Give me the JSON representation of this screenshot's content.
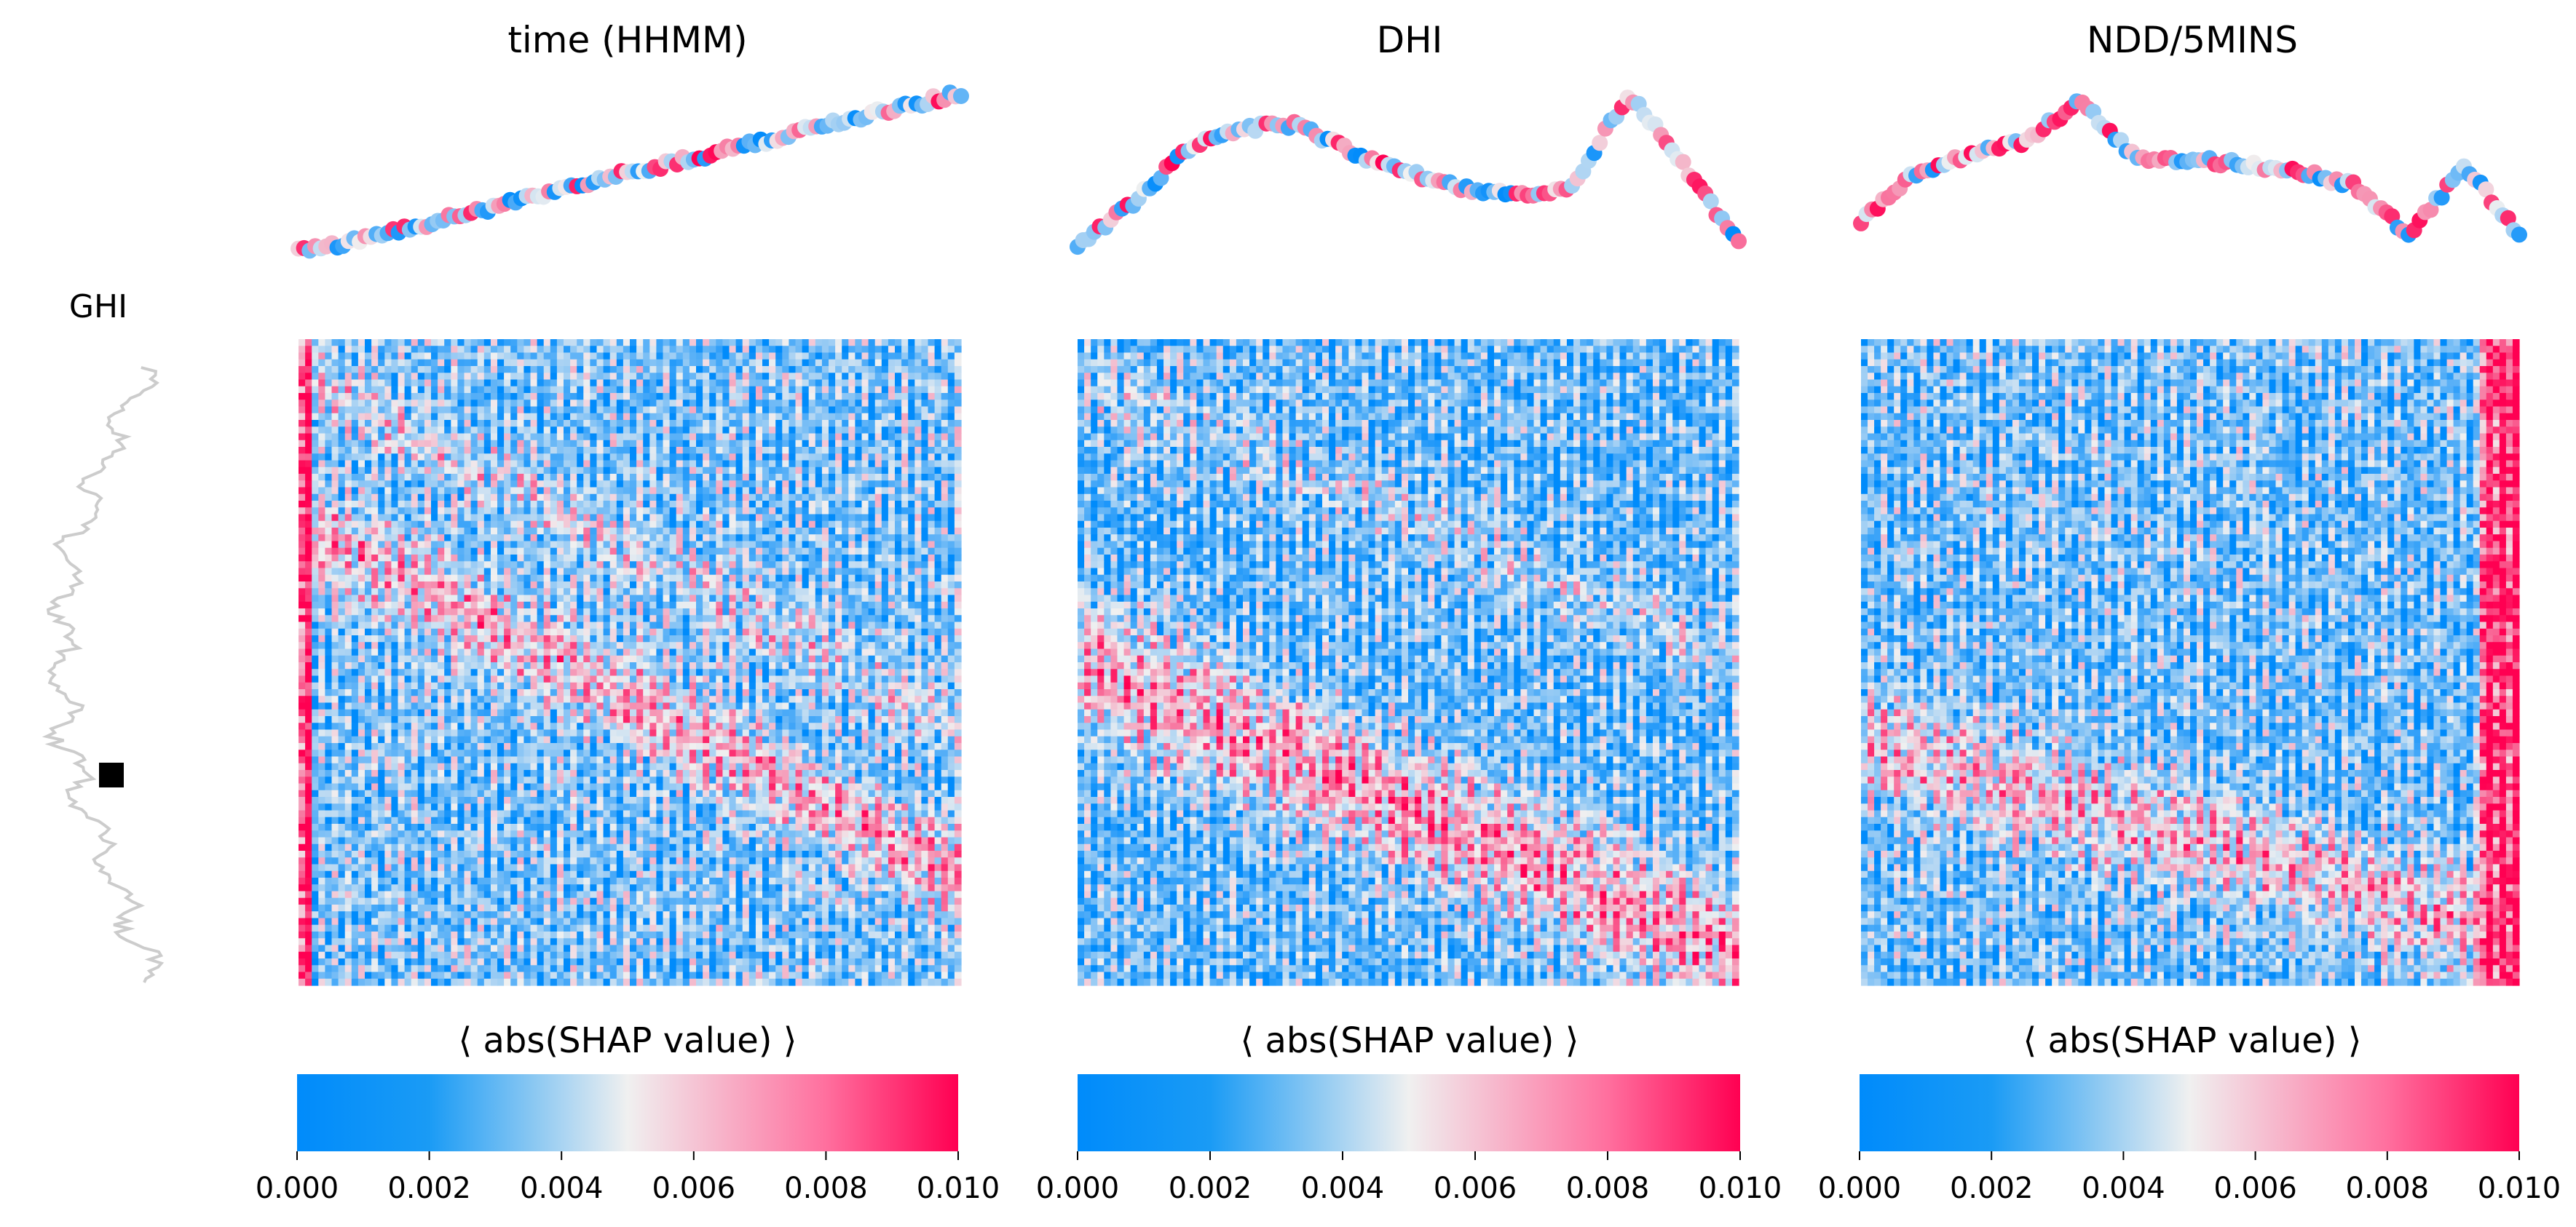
{
  "row_feature_label": "GHI",
  "colors": {
    "low": "#008bfb",
    "mid": "#f0f0f0",
    "high": "#ff0052",
    "line": "#cccccc",
    "marker": "#000000"
  },
  "chart_data": [
    {
      "type": "heatmap",
      "title": "time (HHMM)",
      "colorbar_label": "⟨ abs(SHAP value) ⟩",
      "colorbar_range": [
        0.0,
        0.01
      ],
      "colorbar_ticks": [
        "0.000",
        "0.002",
        "0.004",
        "0.006",
        "0.008",
        "0.010"
      ],
      "top_curve": [
        0.0,
        0.07,
        0.15,
        0.24,
        0.32,
        0.41,
        0.5,
        0.58,
        0.66,
        0.75,
        0.84,
        0.92,
        1.0
      ]
    },
    {
      "type": "heatmap",
      "title": "DHI",
      "colorbar_label": "⟨ abs(SHAP value) ⟩",
      "colorbar_range": [
        0.0,
        0.01
      ],
      "colorbar_ticks": [
        "0.000",
        "0.002",
        "0.004",
        "0.006",
        "0.008",
        "0.010"
      ],
      "top_curve": [
        0.05,
        0.3,
        0.65,
        0.78,
        0.8,
        0.62,
        0.5,
        0.4,
        0.35,
        0.42,
        1.0,
        0.55,
        0.05
      ]
    },
    {
      "type": "heatmap",
      "title": "NDD/5MINS",
      "colorbar_label": "⟨ abs(SHAP value) ⟩",
      "colorbar_range": [
        0.0,
        0.01
      ],
      "colorbar_ticks": [
        "0.000",
        "0.002",
        "0.004",
        "0.006",
        "0.008",
        "0.010"
      ],
      "top_curve": [
        0.2,
        0.5,
        0.62,
        0.7,
        0.95,
        0.6,
        0.58,
        0.55,
        0.5,
        0.42,
        0.1,
        0.55,
        0.1
      ]
    }
  ]
}
